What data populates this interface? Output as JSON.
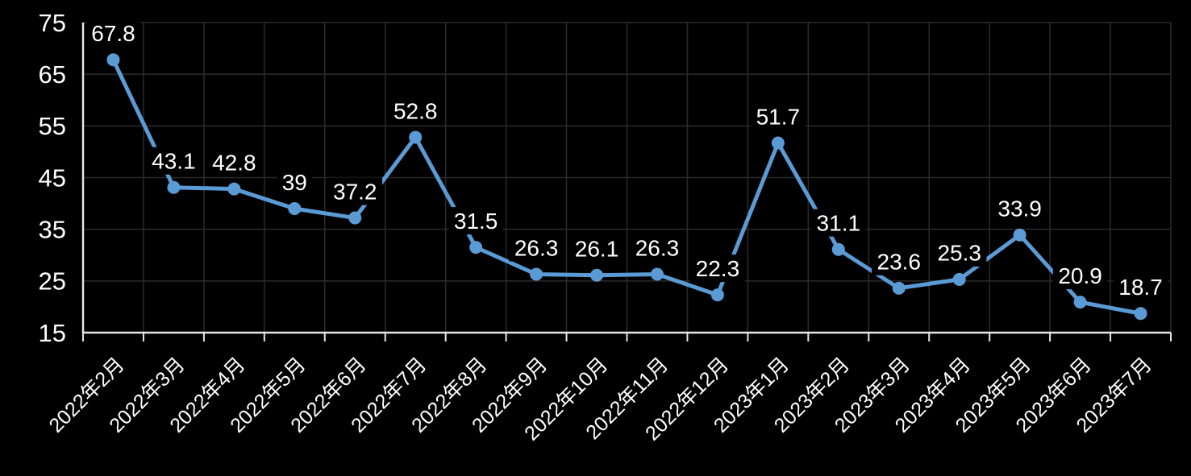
{
  "chart_data": {
    "type": "line",
    "title": "",
    "categories": [
      "2022年2月",
      "2022年3月",
      "2022年4月",
      "2022年5月",
      "2022年6月",
      "2022年7月",
      "2022年8月",
      "2022年9月",
      "2022年10月",
      "2022年11月",
      "2022年12月",
      "2023年1月",
      "2023年2月",
      "2023年3月",
      "2023年4月",
      "2023年5月",
      "2023年6月",
      "2023年7月"
    ],
    "values": [
      67.8,
      43.1,
      42.8,
      39,
      37.2,
      52.8,
      31.5,
      26.3,
      26.1,
      26.3,
      22.3,
      51.7,
      31.1,
      23.6,
      25.3,
      33.9,
      20.9,
      18.7
    ],
    "data_labels": [
      "67.8",
      "43.1",
      "42.8",
      "39",
      "37.2",
      "52.8",
      "31.5",
      "26.3",
      "26.1",
      "26.3",
      "22.3",
      "51.7",
      "31.1",
      "23.6",
      "25.3",
      "33.9",
      "20.9",
      "18.7"
    ],
    "xlabel": "",
    "ylabel": "",
    "ylim": [
      15,
      75
    ],
    "yticks": [
      15,
      25,
      35,
      45,
      55,
      65,
      75
    ],
    "ytick_interval": 10,
    "grid": "on",
    "legend": "none",
    "x_label_rotation": -45,
    "data_label_position": "above",
    "colors": {
      "background": "#000000",
      "line": "#5b9bd5",
      "marker": "#5b9bd5",
      "gridline": "#2b2b2b",
      "axis": "#e6e6e6",
      "text": "#ffffff",
      "data_label_bg": "#000000"
    }
  }
}
